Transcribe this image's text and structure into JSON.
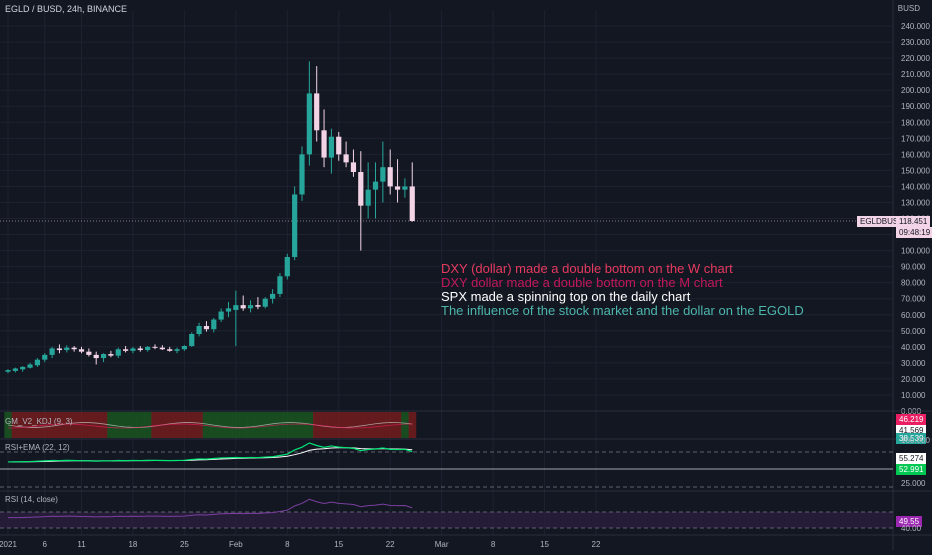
{
  "header": {
    "title": "EGLD / BUSD, 24h, BINANCE"
  },
  "colors": {
    "background": "#131722",
    "up": "#26a69a",
    "down": "#f3d3e6",
    "grid": "#1e2230",
    "axis_text": "#b2b5be",
    "ann1": "#e6395f",
    "ann2": "#c2185b",
    "ann3": "#ffffff",
    "ann4": "#4db6ac",
    "gm_green": "#1b5e20",
    "gm_red": "#7f1d1d",
    "rsi_ema_line": "#00e676",
    "rsi_line": "#7b3fa0"
  },
  "chart_data": {
    "type": "candlestick",
    "title": "EGLD / BUSD, 24h, BINANCE",
    "currency_label": "BUSD",
    "y_tick_labels": [
      "0.000",
      "10.000",
      "20.000",
      "30.000",
      "40.000",
      "50.000",
      "60.000",
      "70.000",
      "80.000",
      "90.000",
      "100.000",
      "110.000",
      "120.000",
      "130.000",
      "140.000",
      "150.000",
      "160.000",
      "170.000",
      "180.000",
      "190.000",
      "200.000",
      "210.000",
      "220.000",
      "230.000",
      "240.000"
    ],
    "ylim": [
      0,
      250
    ],
    "x_tick_labels": [
      "2021",
      "6",
      "11",
      "18",
      "25",
      "Feb",
      "8",
      "15",
      "22",
      "Mar",
      "8",
      "15",
      "22"
    ],
    "x_tick_days": [
      0,
      5,
      10,
      17,
      24,
      31,
      38,
      45,
      52,
      59,
      66,
      73,
      80
    ],
    "last_price": {
      "symbol": "EGLDBUSD",
      "price": "118.451",
      "countdown": "09:48:19"
    },
    "candles": [
      {
        "o": 24.5,
        "h": 26,
        "l": 23.5,
        "c": 25.5
      },
      {
        "o": 25,
        "h": 27,
        "l": 24,
        "c": 26.5
      },
      {
        "o": 26,
        "h": 28,
        "l": 24.5,
        "c": 27.5
      },
      {
        "o": 27,
        "h": 30,
        "l": 26.5,
        "c": 29
      },
      {
        "o": 28.5,
        "h": 33,
        "l": 27.5,
        "c": 32
      },
      {
        "o": 32,
        "h": 36,
        "l": 30.5,
        "c": 35
      },
      {
        "o": 35,
        "h": 40,
        "l": 33,
        "c": 39
      },
      {
        "o": 39,
        "h": 41.5,
        "l": 36,
        "c": 38
      },
      {
        "o": 38,
        "h": 41,
        "l": 36.5,
        "c": 39.5
      },
      {
        "o": 39.5,
        "h": 40.5,
        "l": 37,
        "c": 38.5
      },
      {
        "o": 38.5,
        "h": 40,
        "l": 36,
        "c": 37
      },
      {
        "o": 37,
        "h": 39,
        "l": 34,
        "c": 35
      },
      {
        "o": 35,
        "h": 37,
        "l": 29,
        "c": 33
      },
      {
        "o": 33,
        "h": 36,
        "l": 30.5,
        "c": 35.5
      },
      {
        "o": 35.5,
        "h": 37.5,
        "l": 33.5,
        "c": 34.5
      },
      {
        "o": 34.5,
        "h": 39.5,
        "l": 33,
        "c": 38.5
      },
      {
        "o": 38.5,
        "h": 40.5,
        "l": 36.5,
        "c": 37.5
      },
      {
        "o": 37.5,
        "h": 40,
        "l": 36,
        "c": 39
      },
      {
        "o": 39,
        "h": 40.5,
        "l": 37,
        "c": 38
      },
      {
        "o": 38,
        "h": 40.5,
        "l": 37,
        "c": 40
      },
      {
        "o": 40,
        "h": 41.5,
        "l": 38.5,
        "c": 39.5
      },
      {
        "o": 39.5,
        "h": 41,
        "l": 38,
        "c": 38.5
      },
      {
        "o": 38.5,
        "h": 40,
        "l": 37,
        "c": 37.5
      },
      {
        "o": 37.5,
        "h": 39.5,
        "l": 36,
        "c": 38.5
      },
      {
        "o": 38.5,
        "h": 41,
        "l": 37.5,
        "c": 40.5
      },
      {
        "o": 40.5,
        "h": 49,
        "l": 40,
        "c": 48
      },
      {
        "o": 48,
        "h": 55,
        "l": 46.5,
        "c": 53
      },
      {
        "o": 53,
        "h": 56,
        "l": 49.5,
        "c": 51
      },
      {
        "o": 51,
        "h": 58,
        "l": 49,
        "c": 57
      },
      {
        "o": 57,
        "h": 64,
        "l": 55.5,
        "c": 62
      },
      {
        "o": 62,
        "h": 68,
        "l": 58.5,
        "c": 64
      },
      {
        "o": 63,
        "h": 75,
        "l": 40.5,
        "c": 66
      },
      {
        "o": 66,
        "h": 72,
        "l": 62.5,
        "c": 64
      },
      {
        "o": 64,
        "h": 69,
        "l": 61.5,
        "c": 66
      },
      {
        "o": 66,
        "h": 71,
        "l": 63.5,
        "c": 65
      },
      {
        "o": 65,
        "h": 71,
        "l": 64,
        "c": 70
      },
      {
        "o": 70,
        "h": 76,
        "l": 67,
        "c": 73
      },
      {
        "o": 73,
        "h": 86,
        "l": 71,
        "c": 84
      },
      {
        "o": 84,
        "h": 98,
        "l": 82,
        "c": 96
      },
      {
        "o": 96,
        "h": 140,
        "l": 94,
        "c": 135
      },
      {
        "o": 135,
        "h": 165,
        "l": 131,
        "c": 160
      },
      {
        "o": 160,
        "h": 218,
        "l": 153,
        "c": 198
      },
      {
        "o": 198,
        "h": 215,
        "l": 168,
        "c": 175
      },
      {
        "o": 175,
        "h": 188,
        "l": 152,
        "c": 158
      },
      {
        "o": 158,
        "h": 176,
        "l": 148,
        "c": 171
      },
      {
        "o": 171,
        "h": 174,
        "l": 156,
        "c": 160
      },
      {
        "o": 160,
        "h": 168,
        "l": 152,
        "c": 155
      },
      {
        "o": 155,
        "h": 163,
        "l": 146,
        "c": 149
      },
      {
        "o": 149,
        "h": 162,
        "l": 100,
        "c": 128
      },
      {
        "o": 128,
        "h": 155,
        "l": 120,
        "c": 138
      },
      {
        "o": 138,
        "h": 155,
        "l": 120,
        "c": 143
      },
      {
        "o": 143,
        "h": 168,
        "l": 130,
        "c": 152
      },
      {
        "o": 152,
        "h": 163,
        "l": 135,
        "c": 140
      },
      {
        "o": 140,
        "h": 157,
        "l": 130,
        "c": 138
      },
      {
        "o": 138,
        "h": 145,
        "l": 133,
        "c": 140
      },
      {
        "o": 140,
        "h": 155,
        "l": 118,
        "c": 118.451
      }
    ]
  },
  "annotations": [
    "DXY (dollar) made a double bottom on the W chart",
    "DXY dollar made a double bottom on the M chart",
    "SPX made a spinning top on the daily chart",
    "The influence of the stock market and the dollar on the EGOLD"
  ],
  "indicators": {
    "gm": {
      "label": "GM_V2_KDJ (9, 3)",
      "values": [
        "46.219",
        "41.569",
        "38.539"
      ],
      "axis_tick": "100.000",
      "segments": [
        "green",
        "red",
        "red",
        "red",
        "red",
        "red",
        "red",
        "red",
        "red",
        "red",
        "red",
        "red",
        "red",
        "red",
        "green",
        "green",
        "green",
        "green",
        "green",
        "green",
        "red",
        "red",
        "red",
        "red",
        "red",
        "red",
        "red",
        "green",
        "green",
        "green",
        "green",
        "green",
        "green",
        "green",
        "green",
        "green",
        "green",
        "green",
        "green",
        "green",
        "green",
        "green",
        "red",
        "red",
        "red",
        "red",
        "red",
        "red",
        "red",
        "red",
        "red",
        "red",
        "red",
        "red",
        "green",
        "red"
      ]
    },
    "rsi_ema": {
      "label": "RSI+EMA (22, 12)",
      "values": [
        "55.274",
        "52.991"
      ],
      "axis_tick": "25.000"
    },
    "rsi": {
      "label": "RSI (14, close)",
      "value": "49.55",
      "axis_tick": "40.00"
    }
  }
}
